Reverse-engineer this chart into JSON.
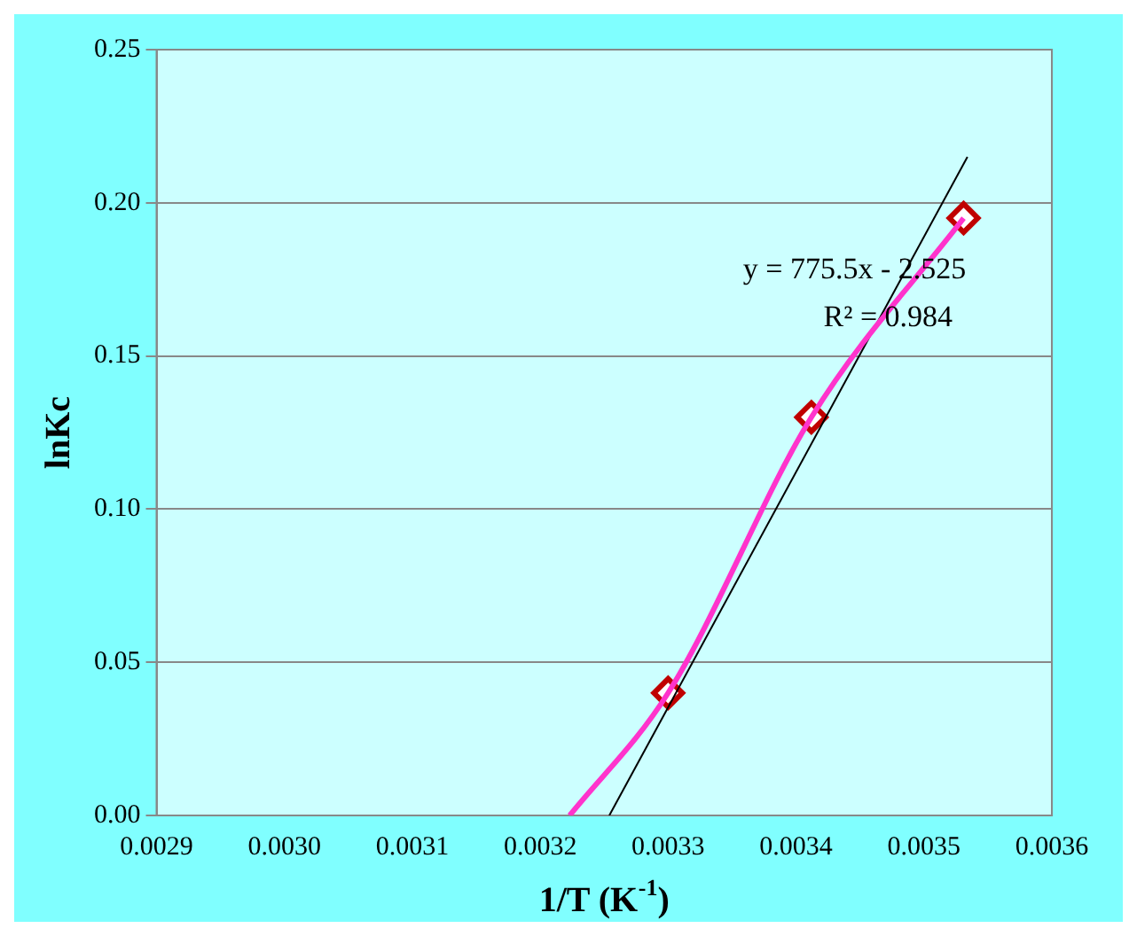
{
  "chart_data": {
    "type": "line",
    "xlabel": "1/T (K$^{-1}$)",
    "ylabel": "lnKc",
    "xlim": [
      0.0029,
      0.0036
    ],
    "xticks": [
      0.0029,
      {
        "value": 0.003,
        "label": "0.0030"
      },
      0.0031,
      0.0032,
      0.0033,
      0.0034,
      0.0035,
      0.0036
    ],
    "ylim": [
      0,
      0.25
    ],
    "yticks": [
      {
        "value": 0,
        "label": "0.00"
      },
      {
        "value": 0.05,
        "label": "0.05"
      },
      {
        "value": 0.1,
        "label": "0.10"
      },
      {
        "value": 0.15,
        "label": "0.15"
      },
      {
        "value": 0.2,
        "label": "0.20"
      },
      {
        "value": 0.25,
        "label": "0.25"
      }
    ],
    "grid": "y",
    "legend": false,
    "series": [
      {
        "color": "#ff33cc",
        "marker": "none",
        "line_style": "solid",
        "x": [
          0.003223,
          0.0033,
          0.003412,
          0.003531
        ],
        "values": [
          0,
          0.04,
          0.13,
          0.195
        ]
      },
      {
        "type": "line",
        "color": "#000000",
        "marker": "none",
        "line_style": "solid",
        "x": [
          0.003254,
          0.003534
        ],
        "values": [
          0,
          0.215
        ]
      },
      {
        "type": "scatter",
        "color": "#c00000",
        "marker": "diamond",
        "x": [
          0.0033,
          0.003412,
          0.003531
        ],
        "values": [
          0.04,
          0.13,
          0.195
        ]
      }
    ],
    "annotations": [
      "y = 775.5x - 2.525",
      "R² = 0.984"
    ]
  }
}
